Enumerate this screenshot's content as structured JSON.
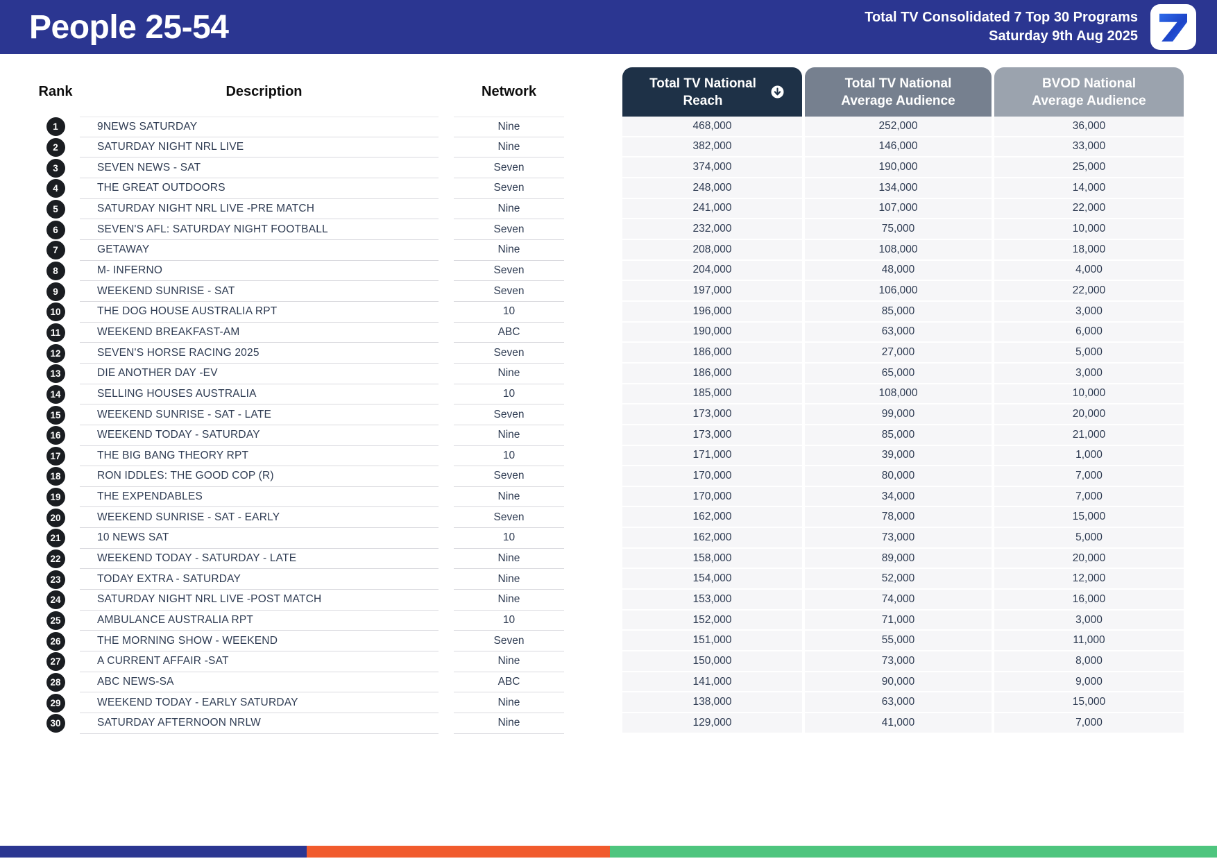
{
  "header": {
    "title": "People 25-54",
    "subtitle_line1": "Total TV Consolidated 7 Top 30 Programs",
    "subtitle_line2": "Saturday 9th Aug 2025",
    "logo_glyph": "7"
  },
  "table": {
    "columns": {
      "rank": "Rank",
      "description": "Description",
      "network": "Network",
      "reach": "Total TV National Reach",
      "avg": "Total TV National Average Audience",
      "bvod": "BVOD National Average Audience"
    },
    "sort_indicator": "down-arrow-circle",
    "rows": [
      {
        "rank": "1",
        "description": "9NEWS SATURDAY",
        "network": "Nine",
        "reach": "468,000",
        "avg": "252,000",
        "bvod": "36,000"
      },
      {
        "rank": "2",
        "description": "SATURDAY NIGHT NRL LIVE",
        "network": "Nine",
        "reach": "382,000",
        "avg": "146,000",
        "bvod": "33,000"
      },
      {
        "rank": "3",
        "description": "SEVEN NEWS - SAT",
        "network": "Seven",
        "reach": "374,000",
        "avg": "190,000",
        "bvod": "25,000"
      },
      {
        "rank": "4",
        "description": "THE GREAT OUTDOORS",
        "network": "Seven",
        "reach": "248,000",
        "avg": "134,000",
        "bvod": "14,000"
      },
      {
        "rank": "5",
        "description": "SATURDAY NIGHT NRL LIVE -PRE MATCH",
        "network": "Nine",
        "reach": "241,000",
        "avg": "107,000",
        "bvod": "22,000"
      },
      {
        "rank": "6",
        "description": "SEVEN'S AFL: SATURDAY NIGHT FOOTBALL",
        "network": "Seven",
        "reach": "232,000",
        "avg": "75,000",
        "bvod": "10,000"
      },
      {
        "rank": "7",
        "description": "GETAWAY",
        "network": "Nine",
        "reach": "208,000",
        "avg": "108,000",
        "bvod": "18,000"
      },
      {
        "rank": "8",
        "description": "M- INFERNO",
        "network": "Seven",
        "reach": "204,000",
        "avg": "48,000",
        "bvod": "4,000"
      },
      {
        "rank": "9",
        "description": "WEEKEND SUNRISE - SAT",
        "network": "Seven",
        "reach": "197,000",
        "avg": "106,000",
        "bvod": "22,000"
      },
      {
        "rank": "10",
        "description": "THE DOG HOUSE AUSTRALIA RPT",
        "network": "10",
        "reach": "196,000",
        "avg": "85,000",
        "bvod": "3,000"
      },
      {
        "rank": "11",
        "description": "WEEKEND BREAKFAST-AM",
        "network": "ABC",
        "reach": "190,000",
        "avg": "63,000",
        "bvod": "6,000"
      },
      {
        "rank": "12",
        "description": "SEVEN'S HORSE RACING 2025",
        "network": "Seven",
        "reach": "186,000",
        "avg": "27,000",
        "bvod": "5,000"
      },
      {
        "rank": "13",
        "description": "DIE ANOTHER DAY -EV",
        "network": "Nine",
        "reach": "186,000",
        "avg": "65,000",
        "bvod": "3,000"
      },
      {
        "rank": "14",
        "description": "SELLING HOUSES AUSTRALIA",
        "network": "10",
        "reach": "185,000",
        "avg": "108,000",
        "bvod": "10,000"
      },
      {
        "rank": "15",
        "description": "WEEKEND SUNRISE - SAT - LATE",
        "network": "Seven",
        "reach": "173,000",
        "avg": "99,000",
        "bvod": "20,000"
      },
      {
        "rank": "16",
        "description": "WEEKEND TODAY - SATURDAY",
        "network": "Nine",
        "reach": "173,000",
        "avg": "85,000",
        "bvod": "21,000"
      },
      {
        "rank": "17",
        "description": "THE BIG BANG THEORY RPT",
        "network": "10",
        "reach": "171,000",
        "avg": "39,000",
        "bvod": "1,000"
      },
      {
        "rank": "18",
        "description": "RON IDDLES: THE GOOD COP (R)",
        "network": "Seven",
        "reach": "170,000",
        "avg": "80,000",
        "bvod": "7,000"
      },
      {
        "rank": "19",
        "description": "THE EXPENDABLES",
        "network": "Nine",
        "reach": "170,000",
        "avg": "34,000",
        "bvod": "7,000"
      },
      {
        "rank": "20",
        "description": "WEEKEND SUNRISE - SAT - EARLY",
        "network": "Seven",
        "reach": "162,000",
        "avg": "78,000",
        "bvod": "15,000"
      },
      {
        "rank": "21",
        "description": "10 NEWS SAT",
        "network": "10",
        "reach": "162,000",
        "avg": "73,000",
        "bvod": "5,000"
      },
      {
        "rank": "22",
        "description": "WEEKEND TODAY - SATURDAY - LATE",
        "network": "Nine",
        "reach": "158,000",
        "avg": "89,000",
        "bvod": "20,000"
      },
      {
        "rank": "23",
        "description": "TODAY EXTRA - SATURDAY",
        "network": "Nine",
        "reach": "154,000",
        "avg": "52,000",
        "bvod": "12,000"
      },
      {
        "rank": "24",
        "description": "SATURDAY NIGHT NRL LIVE -POST MATCH",
        "network": "Nine",
        "reach": "153,000",
        "avg": "74,000",
        "bvod": "16,000"
      },
      {
        "rank": "25",
        "description": "AMBULANCE AUSTRALIA RPT",
        "network": "10",
        "reach": "152,000",
        "avg": "71,000",
        "bvod": "3,000"
      },
      {
        "rank": "26",
        "description": "THE MORNING SHOW - WEEKEND",
        "network": "Seven",
        "reach": "151,000",
        "avg": "55,000",
        "bvod": "11,000"
      },
      {
        "rank": "27",
        "description": "A CURRENT AFFAIR -SAT",
        "network": "Nine",
        "reach": "150,000",
        "avg": "73,000",
        "bvod": "8,000"
      },
      {
        "rank": "28",
        "description": "ABC NEWS-SA",
        "network": "ABC",
        "reach": "141,000",
        "avg": "90,000",
        "bvod": "9,000"
      },
      {
        "rank": "29",
        "description": "WEEKEND TODAY - EARLY SATURDAY",
        "network": "Nine",
        "reach": "138,000",
        "avg": "63,000",
        "bvod": "15,000"
      },
      {
        "rank": "30",
        "description": "SATURDAY AFTERNOON NRLW",
        "network": "Nine",
        "reach": "129,000",
        "avg": "41,000",
        "bvod": "7,000"
      }
    ]
  },
  "colors": {
    "banner_blue": "#2b3691",
    "reach_header": "#1e3147",
    "avg_header": "#76808f",
    "bvod_header": "#9ba3ae",
    "footer_blue": "#2b3691",
    "footer_orange": "#f15b2d",
    "footer_green": "#4ec57e",
    "row_text": "#2e3b52",
    "logo_blue": "#1d44c8"
  }
}
